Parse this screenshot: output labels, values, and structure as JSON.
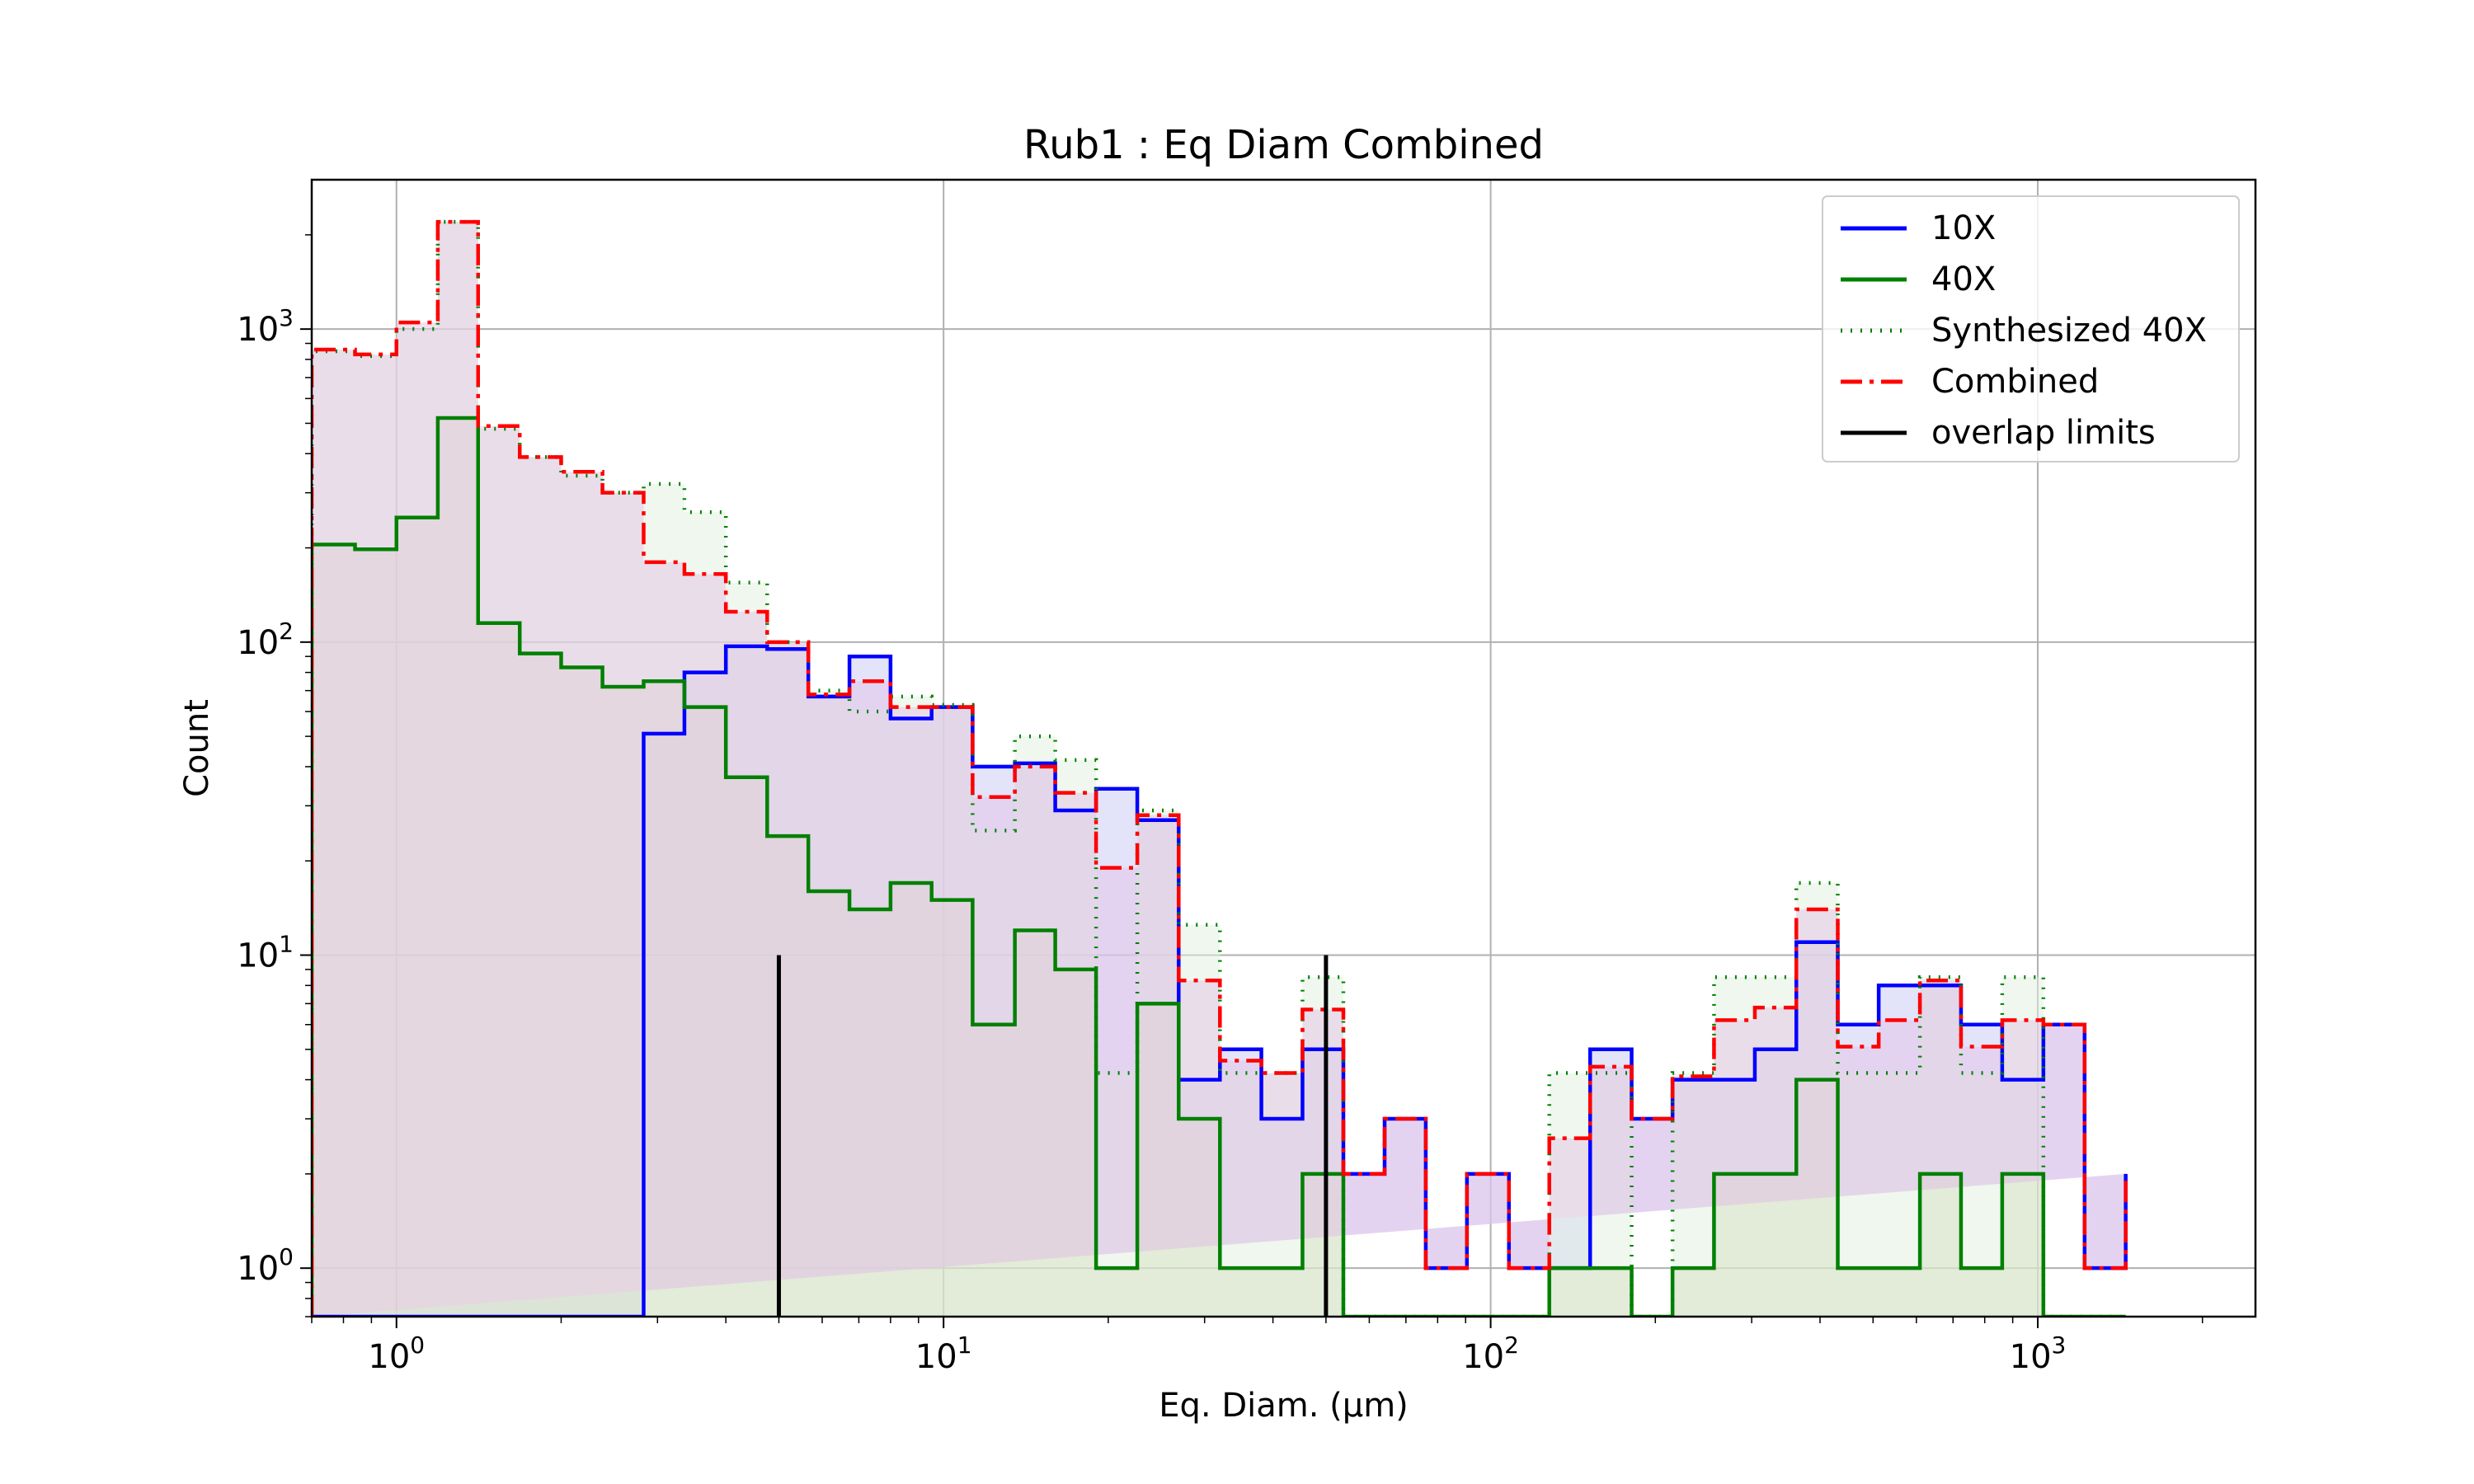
{
  "chart_data": {
    "type": "histogram",
    "title": "Rub1 : Eq Diam Combined",
    "xlabel": "Eq. Diam. (µm)",
    "ylabel": "Count",
    "xscale": "log",
    "yscale": "log",
    "xlim": [
      0.7,
      2500
    ],
    "ylim": [
      0.7,
      3000
    ],
    "grid": true,
    "legend_position": "top-right",
    "x_ticks": [
      {
        "base": "10",
        "exp": "0",
        "value": 1
      },
      {
        "base": "10",
        "exp": "1",
        "value": 10
      },
      {
        "base": "10",
        "exp": "2",
        "value": 100
      },
      {
        "base": "10",
        "exp": "3",
        "value": 1000
      }
    ],
    "y_ticks": [
      {
        "base": "10",
        "exp": "0",
        "value": 1
      },
      {
        "base": "10",
        "exp": "1",
        "value": 10
      },
      {
        "base": "10",
        "exp": "2",
        "value": 100
      },
      {
        "base": "10",
        "exp": "3",
        "value": 1000
      }
    ],
    "bin_edges": [
      0.7,
      0.84,
      1.0,
      1.19,
      1.41,
      1.68,
      2.0,
      2.38,
      2.83,
      3.36,
      4.0,
      4.76,
      5.66,
      6.73,
      8.0,
      9.51,
      11.3,
      13.5,
      16.0,
      19.0,
      22.6,
      26.9,
      32.0,
      38.1,
      45.3,
      53.8,
      64.0,
      76.1,
      90.5,
      108,
      128,
      152,
      181,
      215,
      256,
      304,
      362,
      431,
      512,
      609,
      724,
      861,
      1024,
      1218,
      1448
    ],
    "series": [
      {
        "name": "10X",
        "color": "#0000ff",
        "linestyle": "solid",
        "fill": "#c8c8f5",
        "values": [
          0,
          0,
          0,
          0,
          0,
          0,
          0,
          0,
          51,
          80,
          97,
          95,
          67,
          90,
          57,
          62,
          40,
          41,
          29,
          34,
          27,
          4,
          5,
          3,
          5,
          2,
          3,
          1,
          2,
          1,
          1,
          5,
          3,
          4,
          4,
          5,
          11,
          6,
          8,
          8,
          6,
          4,
          6,
          1,
          2
        ]
      },
      {
        "name": "40X",
        "color": "#008000",
        "linestyle": "solid",
        "fill": "#cfcfa6",
        "values": [
          205,
          198,
          250,
          520,
          115,
          92,
          83,
          72,
          75,
          62,
          37,
          24,
          16,
          14,
          17,
          15,
          6,
          12,
          9,
          1,
          7,
          3,
          1,
          1,
          2,
          0,
          0,
          0,
          0,
          0,
          1,
          1,
          0,
          1,
          2,
          2,
          4,
          1,
          1,
          2,
          1,
          2,
          0,
          0,
          0
        ]
      },
      {
        "name": "Synthesized 40X",
        "color": "#008000",
        "linestyle": "dotted",
        "fill": "#dff0df",
        "values": [
          850,
          820,
          1000,
          2200,
          480,
          390,
          340,
          300,
          320,
          260,
          155,
          100,
          70,
          60,
          67,
          63,
          25,
          50,
          42,
          4.2,
          29,
          12.5,
          4.2,
          4.2,
          8.5,
          0,
          0,
          0,
          0,
          0,
          4.2,
          4.2,
          0,
          4.2,
          8.5,
          8.5,
          17,
          4.2,
          4.2,
          8.5,
          4.2,
          8.5,
          0,
          0,
          0
        ]
      },
      {
        "name": "Combined",
        "color": "#ff0000",
        "linestyle": "dashdot",
        "fill": "#e6c3e6",
        "values": [
          860,
          830,
          1050,
          2200,
          490,
          390,
          350,
          300,
          180,
          165,
          125,
          100,
          68,
          75,
          62,
          62,
          32,
          40,
          33,
          19,
          28,
          8.3,
          4.6,
          4.2,
          6.7,
          2,
          3,
          1,
          2,
          1,
          2.6,
          4.4,
          3,
          4.1,
          6.2,
          6.8,
          14,
          5.1,
          6.2,
          8.3,
          5.1,
          6.2,
          6,
          1,
          2
        ]
      },
      {
        "name": "overlap limits",
        "color": "#000000",
        "linestyle": "solid",
        "vlines": [
          5,
          50
        ],
        "vline_top": 10
      }
    ]
  }
}
